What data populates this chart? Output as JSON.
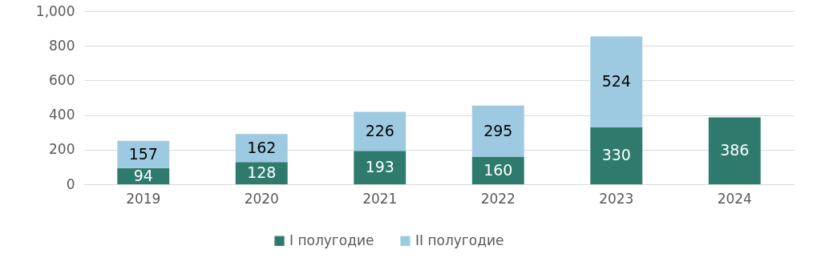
{
  "chart_data": {
    "type": "bar",
    "stacked": true,
    "categories": [
      "2019",
      "2020",
      "2021",
      "2022",
      "2023",
      "2024"
    ],
    "series": [
      {
        "name": "I полугодие",
        "color": "#2e7b6e",
        "values": [
          94,
          128,
          193,
          160,
          330,
          386
        ]
      },
      {
        "name": "II полугодие",
        "color": "#9ecae1",
        "values": [
          157,
          162,
          226,
          295,
          524,
          null
        ]
      }
    ],
    "ylim": [
      0,
      1000
    ],
    "yticks": [
      0,
      200,
      400,
      600,
      800,
      {
        "value": 1000,
        "label": "1,000"
      }
    ],
    "grid": "y",
    "legend": "bottom",
    "data_labels": true
  }
}
